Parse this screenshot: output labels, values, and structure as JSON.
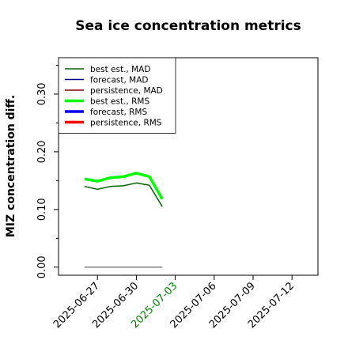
{
  "chart_data": {
    "type": "line",
    "title": "Sea ice concentration metrics",
    "y_label": "MIZ concentration diff.",
    "x": [
      "2025-06-26",
      "2025-06-27",
      "2025-06-28",
      "2025-06-29",
      "2025-06-30",
      "2025-07-01",
      "2025-07-02"
    ],
    "series": [
      {
        "name": "best est., MAD",
        "color": "#006400",
        "linewidth": 1.5,
        "values": [
          0.14,
          0.135,
          0.14,
          0.141,
          0.146,
          0.142,
          0.105
        ]
      },
      {
        "name": "forecast,  MAD",
        "color": "#000080",
        "linewidth": 1.5,
        "values": [
          null,
          null,
          null,
          null,
          null,
          null,
          null
        ]
      },
      {
        "name": "persistence, MAD",
        "color": "#8b0000",
        "linewidth": 1.5,
        "values": [
          null,
          null,
          null,
          null,
          null,
          null,
          null
        ]
      },
      {
        "name": "best est., RMS",
        "color": "#00ff00",
        "linewidth": 3.5,
        "values": [
          0.153,
          0.149,
          0.155,
          0.157,
          0.163,
          0.157,
          0.118
        ]
      },
      {
        "name": "forecast,  RMS",
        "color": "#0000ff",
        "linewidth": 3.5,
        "values": [
          null,
          null,
          null,
          null,
          null,
          null,
          null
        ]
      },
      {
        "name": "persistence, RMS",
        "color": "#ff0000",
        "linewidth": 3.5,
        "values": [
          null,
          null,
          null,
          null,
          null,
          null,
          null
        ]
      }
    ],
    "reference_line": {
      "y": 0,
      "color": "#808080"
    },
    "xlim": [
      "2025-06-24",
      "2025-07-14"
    ],
    "xticks": [
      "2025-06-27",
      "2025-06-30",
      "2025-07-03",
      "2025-07-06",
      "2025-07-09",
      "2025-07-12"
    ],
    "xtick_colors": [
      "#000000",
      "#000000",
      "#008000",
      "#000000",
      "#000000",
      "#000000"
    ],
    "ylim": [
      -0.014,
      0.363
    ],
    "yticks": [
      {
        "value": 0,
        "label": "0.00"
      },
      {
        "value": 0.1,
        "label": "0.10"
      },
      {
        "value": 0.2,
        "label": "0.20"
      },
      {
        "value": 0.3,
        "label": "0.30"
      }
    ],
    "yminorticks": [
      0.05,
      0.15,
      0.25,
      0.35
    ],
    "legend": "upper left"
  }
}
